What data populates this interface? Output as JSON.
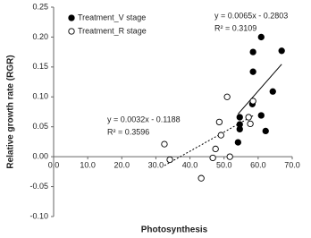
{
  "chart_data": {
    "type": "scatter",
    "x_label": "Photosynthesis",
    "y_label": "Relative growth rate (RGR)",
    "xlim": [
      0,
      70
    ],
    "ylim": [
      -0.1,
      0.25
    ],
    "xticks": [
      {
        "value": 0,
        "label": "0.0"
      },
      {
        "value": 10,
        "label": "10.0"
      },
      {
        "value": 20,
        "label": "20.0"
      },
      {
        "value": 30,
        "label": "30.0"
      },
      {
        "value": 40,
        "label": "40.0"
      },
      {
        "value": 50,
        "label": "50.0"
      },
      {
        "value": 60,
        "label": "60.0"
      },
      {
        "value": 70,
        "label": "70.0"
      }
    ],
    "yticks": [
      {
        "value": -0.1,
        "label": "-0.10"
      },
      {
        "value": -0.05,
        "label": "-0.05"
      },
      {
        "value": 0,
        "label": "0.00"
      },
      {
        "value": 0.05,
        "label": "0.05"
      },
      {
        "value": 0.1,
        "label": "0.10"
      },
      {
        "value": 0.15,
        "label": "0.15"
      },
      {
        "value": 0.2,
        "label": "0.20"
      },
      {
        "value": 0.25,
        "label": "0.25"
      }
    ],
    "legend": "top-left",
    "series": [
      {
        "name": "Treatment_V stage",
        "color": "#000000",
        "marker": "filled",
        "x": [
          60.9,
          66.9,
          58.5,
          58.5,
          64.3,
          58.3,
          54.6,
          60.9,
          54.6,
          54.6,
          54.1,
          62.2
        ],
        "values": [
          0.2,
          0.177,
          0.175,
          0.142,
          0.109,
          0.088,
          0.066,
          0.069,
          0.054,
          0.046,
          0.024,
          0.043
        ],
        "trendline": {
          "slope": 0.0065,
          "intercept": -0.2803,
          "dash": "solid",
          "equation": "y = 0.0065x - 0.2803",
          "r2_label": "R² = 0.3109"
        }
      },
      {
        "name": "Treatment_R stage",
        "color": "#000000",
        "marker": "open",
        "x": [
          32.5,
          34.1,
          43.3,
          48.6,
          49.1,
          47.5,
          46.7,
          50.9,
          51.7,
          58.5,
          57.2,
          57.7
        ],
        "values": [
          0.021,
          -0.005,
          -0.036,
          0.058,
          0.036,
          0.013,
          -0.002,
          0.1,
          0.0,
          0.093,
          0.066,
          0.055
        ],
        "trendline": {
          "slope": 0.0032,
          "intercept": -0.1188,
          "dash": "dotted",
          "equation": "y = 0.0032x - 0.1188",
          "r2_label": "R² = 0.3596"
        }
      }
    ]
  }
}
